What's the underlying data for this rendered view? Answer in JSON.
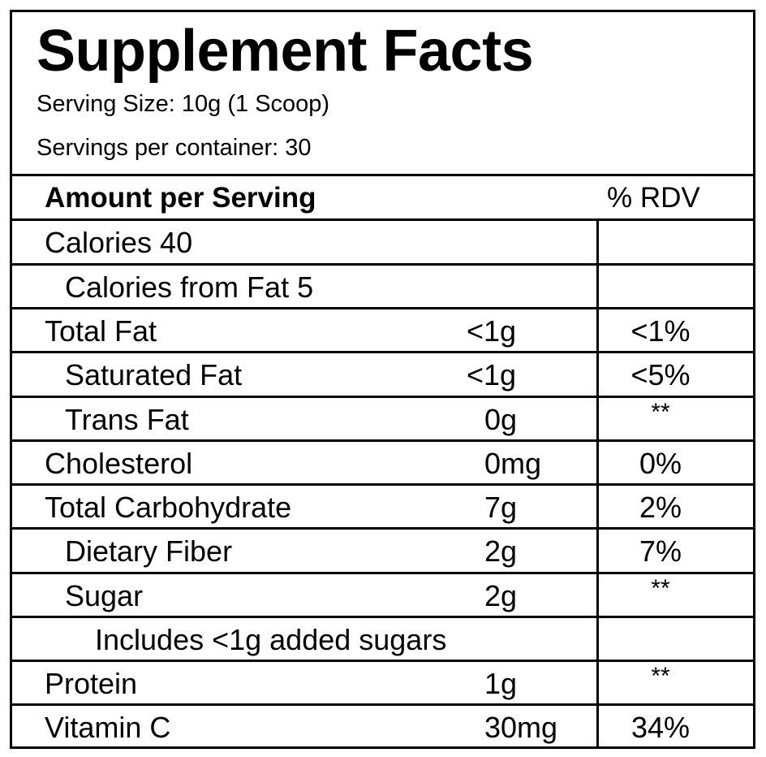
{
  "title": "Supplement Facts",
  "serving_size": "Serving Size: 10g (1 Scoop)",
  "servings_per_container": "Servings per container: 30",
  "header": {
    "amount": "Amount per Serving",
    "rdv": "% RDV"
  },
  "rows": [
    {
      "label": "Calories 40",
      "amount": "",
      "rdv": "",
      "indent": 0
    },
    {
      "label": "Calories from Fat 5",
      "amount": "",
      "rdv": "",
      "indent": 1
    },
    {
      "label": "Total Fat",
      "amount": "<1g",
      "rdv": "<1%",
      "indent": 0
    },
    {
      "label": "Saturated Fat",
      "amount": "<1g",
      "rdv": "<5%",
      "indent": 1
    },
    {
      "label": "Trans Fat",
      "amount": "0g",
      "rdv": "**",
      "indent": 1
    },
    {
      "label": "Cholesterol",
      "amount": "0mg",
      "rdv": "0%",
      "indent": 0
    },
    {
      "label": "Total Carbohydrate",
      "amount": "7g",
      "rdv": "2%",
      "indent": 0
    },
    {
      "label": "Dietary Fiber",
      "amount": "2g",
      "rdv": "7%",
      "indent": 1
    },
    {
      "label": "Sugar",
      "amount": "2g",
      "rdv": "**",
      "indent": 1
    },
    {
      "label": "Includes <1g added sugars",
      "amount": "",
      "rdv": "",
      "indent": 2
    },
    {
      "label": "Protein",
      "amount": "1g",
      "rdv": "**",
      "indent": 0
    },
    {
      "label": "Vitamin C",
      "amount": "30mg",
      "rdv": "34%",
      "indent": 0
    }
  ]
}
